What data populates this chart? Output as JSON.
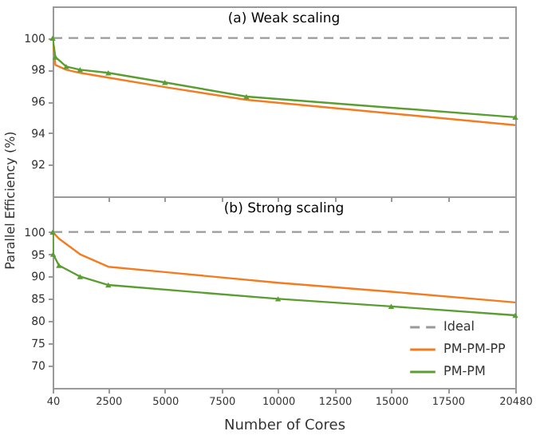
{
  "chart_data": [
    {
      "type": "line",
      "title": "(a) Weak scaling",
      "ylabel": "Parallel Efficiency (%)",
      "xlim": [
        40,
        20480
      ],
      "xticks": [
        40,
        2500,
        5000,
        7500,
        10000,
        12500,
        15000,
        17500,
        20480
      ],
      "ylim": [
        90,
        102
      ],
      "yticks": [
        92,
        94,
        96,
        98,
        100
      ],
      "tick_labels": "y",
      "legend": false,
      "series": [
        {
          "color": "#999999",
          "line_style": "dashed",
          "marker": "none",
          "x": [
            40,
            20480
          ],
          "values": [
            100,
            100
          ]
        },
        {
          "color": "#f47c20",
          "line_style": "solid",
          "marker": "none",
          "x": [
            40,
            160,
            640,
            1250,
            2500,
            5000,
            8600,
            20480
          ],
          "values": [
            100,
            98.3,
            98.0,
            97.8,
            97.5,
            96.9,
            96.1,
            94.5
          ]
        },
        {
          "color": "#5a9e32",
          "line_style": "solid",
          "marker": "triangle",
          "x": [
            40,
            160,
            640,
            1250,
            2500,
            5000,
            8600,
            20480
          ],
          "values": [
            100,
            98.8,
            98.2,
            98.0,
            97.8,
            97.2,
            96.3,
            95.0
          ]
        }
      ]
    },
    {
      "type": "line",
      "title": "(b) Strong scaling",
      "xlabel": "Number of Cores",
      "xlim": [
        40,
        20480
      ],
      "xticks": [
        40,
        2500,
        5000,
        7500,
        10000,
        12500,
        15000,
        17500,
        20480
      ],
      "ylim": [
        65,
        108
      ],
      "yticks": [
        70,
        75,
        80,
        85,
        90,
        95,
        100
      ],
      "legend": "bottom right",
      "series": [
        {
          "name": "Ideal",
          "color": "#999999",
          "line_style": "dashed",
          "marker": "none",
          "x": [
            40,
            20480
          ],
          "values": [
            100,
            100
          ]
        },
        {
          "name": "PM-PM-PP",
          "color": "#f47c20",
          "line_style": "solid",
          "marker": "none",
          "x": [
            40,
            320,
            1250,
            2500,
            5000,
            10000,
            15000,
            20480
          ],
          "values": [
            100,
            98.5,
            95,
            92.2,
            91,
            88.6,
            86.6,
            84.2
          ]
        },
        {
          "name": "PM-PM",
          "color": "#5a9e32",
          "line_style": "solid",
          "marker": "triangle",
          "x": [
            40,
            60,
            320,
            1250,
            2500,
            10000,
            15000,
            20480
          ],
          "values": [
            100,
            95,
            92.5,
            90,
            88.1,
            85,
            83.3,
            81.3
          ]
        }
      ]
    }
  ]
}
